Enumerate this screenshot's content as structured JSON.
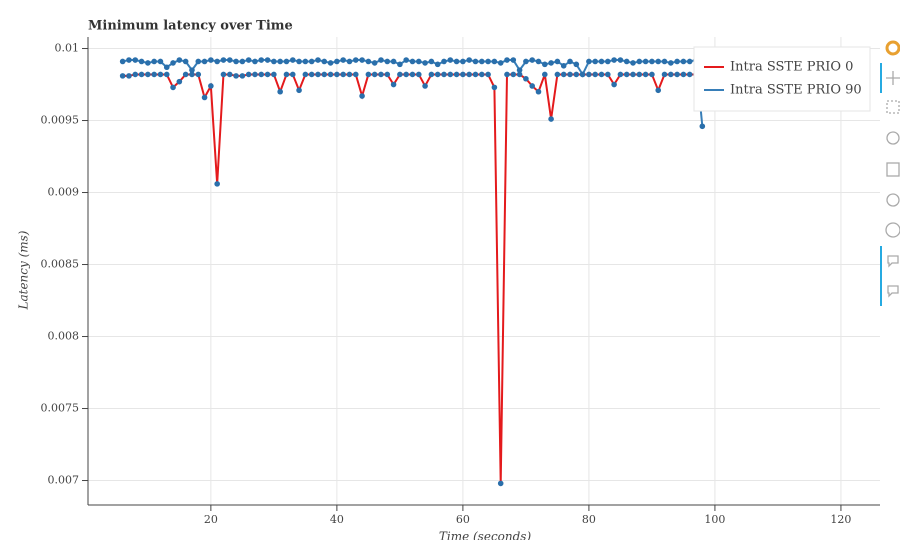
{
  "chart_data": {
    "type": "line",
    "title": "Minimum latency over Time",
    "x_label": "Time (seconds)",
    "y_label": "Latency (ms)",
    "x": [
      6,
      7,
      8,
      9,
      10,
      11,
      12,
      13,
      14,
      15,
      16,
      17,
      18,
      19,
      20,
      21,
      22,
      23,
      24,
      25,
      26,
      27,
      28,
      29,
      30,
      31,
      32,
      33,
      34,
      35,
      36,
      37,
      38,
      39,
      40,
      41,
      42,
      43,
      44,
      45,
      46,
      47,
      48,
      49,
      50,
      51,
      52,
      53,
      54,
      55,
      56,
      57,
      58,
      59,
      60,
      61,
      62,
      63,
      64,
      65,
      66,
      67,
      68,
      69,
      70,
      71,
      72,
      73,
      74,
      75,
      76,
      77,
      78,
      79,
      80,
      81,
      82,
      83,
      84,
      85,
      86,
      87,
      88,
      89,
      90,
      91,
      92,
      93,
      94,
      95,
      96,
      97,
      98
    ],
    "series": [
      {
        "name": "Intra SSTE PRIO 0",
        "color": "#e41a1c",
        "values": [
          0.00981,
          0.00981,
          0.00982,
          0.00982,
          0.00982,
          0.00982,
          0.00982,
          0.00982,
          0.00973,
          0.00977,
          0.00982,
          0.00982,
          0.00982,
          0.00966,
          0.00974,
          0.00906,
          0.00982,
          0.00982,
          0.00981,
          0.00981,
          0.00982,
          0.00982,
          0.00982,
          0.00982,
          0.00982,
          0.0097,
          0.00982,
          0.00982,
          0.00971,
          0.00982,
          0.00982,
          0.00982,
          0.00982,
          0.00982,
          0.00982,
          0.00982,
          0.00982,
          0.00982,
          0.00967,
          0.00982,
          0.00982,
          0.00982,
          0.00982,
          0.00975,
          0.00982,
          0.00982,
          0.00982,
          0.00982,
          0.00974,
          0.00982,
          0.00982,
          0.00982,
          0.00982,
          0.00982,
          0.00982,
          0.00982,
          0.00982,
          0.00982,
          0.00982,
          0.00973,
          0.00698,
          0.00982,
          0.00982,
          0.00982,
          0.00979,
          0.00974,
          0.0097,
          0.00982,
          0.00951,
          0.00982,
          0.00982,
          0.00982,
          0.00982,
          0.00982,
          0.00982,
          0.00982,
          0.00982,
          0.00982,
          0.00975,
          0.00982,
          0.00982,
          0.00982,
          0.00982,
          0.00982,
          0.00982,
          0.00971,
          0.00982,
          0.00982,
          0.00982,
          0.00982,
          0.00982,
          0.00982,
          0.00982
        ]
      },
      {
        "name": "Intra SSTE PRIO 90",
        "color": "#377eb8",
        "values": [
          0.00991,
          0.00992,
          0.00992,
          0.00991,
          0.0099,
          0.00991,
          0.00991,
          0.00987,
          0.0099,
          0.00992,
          0.00991,
          0.00985,
          0.00991,
          0.00991,
          0.00992,
          0.00991,
          0.00992,
          0.00992,
          0.00991,
          0.00991,
          0.00992,
          0.00991,
          0.00992,
          0.00992,
          0.00991,
          0.00991,
          0.00991,
          0.00992,
          0.00991,
          0.00991,
          0.00991,
          0.00992,
          0.00991,
          0.0099,
          0.00991,
          0.00992,
          0.00991,
          0.00992,
          0.00992,
          0.00991,
          0.0099,
          0.00992,
          0.00991,
          0.00991,
          0.00989,
          0.00992,
          0.00991,
          0.00991,
          0.0099,
          0.00991,
          0.00989,
          0.00991,
          0.00992,
          0.00991,
          0.00991,
          0.00992,
          0.00991,
          0.00991,
          0.00991,
          0.00991,
          0.0099,
          0.00992,
          0.00992,
          0.00985,
          0.00991,
          0.00992,
          0.00991,
          0.00989,
          0.0099,
          0.00991,
          0.00988,
          0.00991,
          0.00989,
          0.00982,
          0.00991,
          0.00991,
          0.00991,
          0.00991,
          0.00992,
          0.00992,
          0.00991,
          0.0099,
          0.00991,
          0.00991,
          0.00991,
          0.00991,
          0.00991,
          0.0099,
          0.00991,
          0.00991,
          0.00991,
          0.00992,
          0.00946
        ]
      }
    ],
    "marker_color": "#2a6fab",
    "xlim": [
      0.5,
      126.2
    ],
    "ylim": [
      0.00683,
      0.01008
    ],
    "xticks": [
      20,
      40,
      60,
      80,
      100,
      120
    ],
    "yticks": [
      0.007,
      0.0075,
      0.008,
      0.0085,
      0.009,
      0.0095,
      0.01
    ],
    "grid": true,
    "legend": "top_right"
  }
}
